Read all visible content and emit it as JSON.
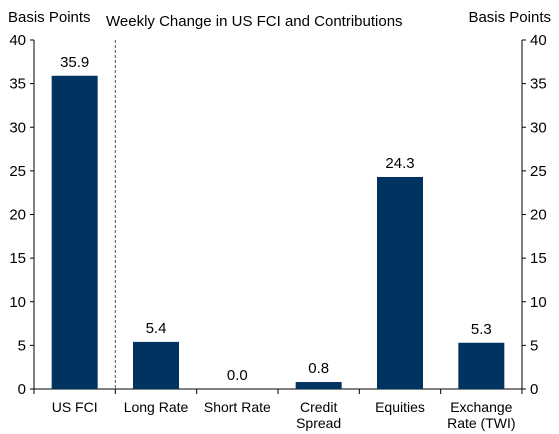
{
  "chart_data": {
    "type": "bar",
    "title": "Weekly Change in US FCI and Contributions",
    "ylabel_left": "Basis Points",
    "ylabel_right": "Basis Points",
    "categories": [
      "US FCI",
      "Long Rate",
      "Short Rate",
      "Credit Spread",
      "Equities",
      "Exchange Rate (TWI)"
    ],
    "category_lines": [
      [
        "US FCI"
      ],
      [
        "Long Rate"
      ],
      [
        "Short Rate"
      ],
      [
        "Credit",
        "Spread"
      ],
      [
        "Equities"
      ],
      [
        "Exchange",
        "Rate (TWI)"
      ]
    ],
    "values": [
      35.9,
      5.4,
      0.0,
      0.8,
      24.3,
      5.3
    ],
    "data_labels": [
      "35.9",
      "5.4",
      "0.0",
      "0.8",
      "24.3",
      "5.3"
    ],
    "ylim": [
      0,
      40
    ],
    "yticks": [
      0,
      5,
      10,
      15,
      20,
      25,
      30,
      35,
      40
    ],
    "grid": false,
    "bar_color": "#003360",
    "separator_after_category": 0
  }
}
